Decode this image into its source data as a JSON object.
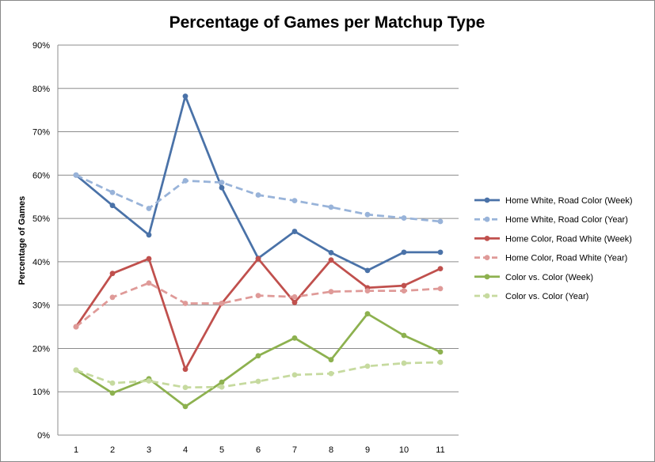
{
  "chart_data": {
    "type": "line",
    "title": "Percentage of Games per Matchup Type",
    "xlabel": "",
    "ylabel": "Percentage of Games",
    "x": [
      1,
      2,
      3,
      4,
      5,
      6,
      7,
      8,
      9,
      10,
      11
    ],
    "x_tick_labels": [
      "1",
      "2",
      "3",
      "4",
      "5",
      "6",
      "7",
      "8",
      "9",
      "10",
      "11"
    ],
    "ylim": [
      0,
      90
    ],
    "y_ticks": [
      0,
      10,
      20,
      30,
      40,
      50,
      60,
      70,
      80,
      90
    ],
    "y_tick_labels": [
      "0%",
      "10%",
      "20%",
      "30%",
      "40%",
      "50%",
      "60%",
      "70%",
      "80%",
      "90%"
    ],
    "grid": "horizontal",
    "legend_position": "right",
    "series": [
      {
        "name": "Home White, Road Color (Week)",
        "color": "#4a72a8",
        "style": "solid",
        "values": [
          60.0,
          53.0,
          46.2,
          78.2,
          57.1,
          40.8,
          47.0,
          42.1,
          38.0,
          42.2,
          42.2
        ]
      },
      {
        "name": "Home White, Road Color (Year)",
        "color": "#98b3d9",
        "style": "dashed",
        "values": [
          60.0,
          56.0,
          52.3,
          58.7,
          58.3,
          55.4,
          54.1,
          52.6,
          50.9,
          50.1,
          49.3
        ]
      },
      {
        "name": "Home Color, Road White (Week)",
        "color": "#c0504d",
        "style": "solid",
        "values": [
          25.0,
          37.3,
          40.7,
          15.2,
          30.4,
          40.7,
          30.6,
          40.4,
          34.0,
          34.5,
          38.4
        ]
      },
      {
        "name": "Home Color, Road White (Year)",
        "color": "#df9a98",
        "style": "dashed",
        "values": [
          25.0,
          31.8,
          35.1,
          30.4,
          30.4,
          32.2,
          31.9,
          33.1,
          33.3,
          33.3,
          33.8
        ]
      },
      {
        "name": "Color vs. Color (Week)",
        "color": "#8db14f",
        "style": "solid",
        "values": [
          15.0,
          9.7,
          13.0,
          6.6,
          12.2,
          18.3,
          22.4,
          17.4,
          28.0,
          23.0,
          19.2
        ]
      },
      {
        "name": "Color vs. Color (Year)",
        "color": "#c6da9f",
        "style": "dashed",
        "values": [
          15.0,
          12.0,
          12.5,
          11.0,
          11.1,
          12.4,
          13.9,
          14.2,
          15.9,
          16.6,
          16.8
        ]
      }
    ]
  }
}
